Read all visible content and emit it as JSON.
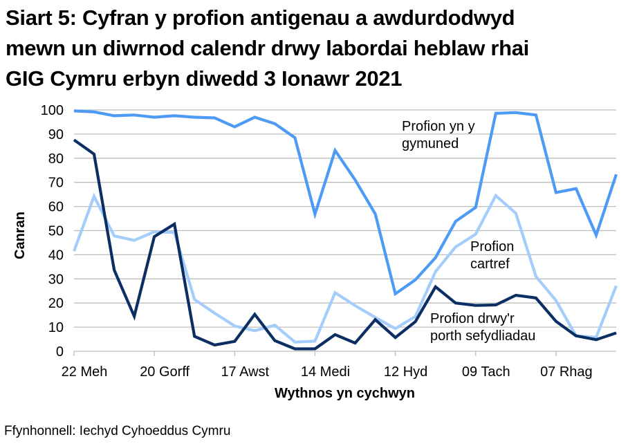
{
  "chart_data": {
    "type": "line",
    "title": "Siart 5: Cyfran y profion antigenau a awdurdodwyd mewn un diwrnod calendr drwy labordai heblaw rhai GIG Cymru erbyn diwedd 3 Ionawr 2021",
    "title_lines": [
      "Siart 5: Cyfran y profion antigenau a awdurdodwyd",
      "mewn un diwrnod calendr drwy labordai heblaw rhai",
      "GIG Cymru erbyn diwedd 3 Ionawr 2021"
    ],
    "xlabel": "Wythnos yn cychwyn",
    "ylabel": "Canran",
    "ylim": [
      0,
      100
    ],
    "yticks": [
      0,
      10,
      20,
      30,
      40,
      50,
      60,
      70,
      80,
      90,
      100
    ],
    "xtick_labels": [
      "22 Meh",
      "20 Gorff",
      "17 Awst",
      "14 Medi",
      "12 Hyd",
      "09 Tach",
      "07 Rhag"
    ],
    "xtick_every": 4,
    "num_points": 28,
    "grid": true,
    "legend_position": "inline annotations",
    "series": [
      {
        "name": "Profion yn y gymuned",
        "label_lines": [
          "Profion yn y",
          "gymuned"
        ],
        "color": "#4d9bf5",
        "values": [
          99.6,
          99.2,
          97.6,
          97.9,
          97.0,
          97.6,
          97.0,
          96.7,
          93.0,
          97.0,
          94.3,
          88.5,
          56.8,
          83.2,
          71.0,
          56.9,
          23.8,
          29.6,
          38.8,
          53.8,
          59.6,
          98.6,
          98.9,
          97.9,
          65.8,
          67.4,
          48.1,
          73.3
        ]
      },
      {
        "name": "Profion cartref",
        "label_lines": [
          "Profion",
          "cartref"
        ],
        "color": "#a4cdfb",
        "values": [
          41.5,
          64.2,
          47.8,
          46.0,
          49.5,
          49.2,
          21.5,
          15.8,
          10.5,
          8.5,
          10.8,
          3.8,
          4.2,
          24.3,
          18.9,
          14.0,
          9.4,
          14.4,
          33.0,
          43.2,
          48.5,
          64.5,
          57.2,
          31.0,
          21.0,
          6.4,
          5.8,
          27.1
        ]
      },
      {
        "name": "Profion drwy'r porth sefydliadau",
        "label_lines": [
          "Profion drwy'r",
          "porth sefydliadau"
        ],
        "color": "#0b2e63",
        "values": [
          87.6,
          81.7,
          33.7,
          14.5,
          47.5,
          52.7,
          6.2,
          2.6,
          4.1,
          15.3,
          4.4,
          1.0,
          1.0,
          6.9,
          3.4,
          13.1,
          5.7,
          12.3,
          26.7,
          20.0,
          19.0,
          19.2,
          23.2,
          22.1,
          12.4,
          6.4,
          4.8,
          7.6
        ]
      }
    ],
    "source": "Ffynhonnell: Iechyd Cyhoeddus Cymru"
  }
}
